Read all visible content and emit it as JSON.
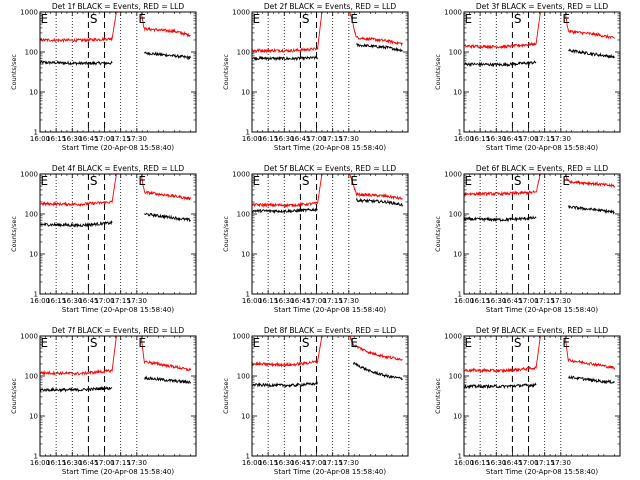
{
  "colors": {
    "events": "#000000",
    "lld": "#ff0000",
    "background": "#ffffff"
  },
  "chart_data": [
    {
      "type": "line",
      "title": "Det 1f BLACK = Events, RED = LLD",
      "xlabel": "Start Time (20-Apr-08 15:58:40)",
      "ylabel": "Counts/sec",
      "ylim": [
        1,
        1000
      ],
      "yscale": "log",
      "x_ticks": [
        "16:00",
        "16:15",
        "16:30",
        "16:45",
        "17:00",
        "17:15",
        "17:30"
      ],
      "y_ticks": [
        "1",
        "10",
        "100",
        "1000"
      ],
      "markers": [
        "S",
        "E"
      ],
      "series": [
        {
          "name": "Events",
          "color": "#000000",
          "segments": [
            [
              [
                0,
                55
              ],
              [
                37,
                52
              ],
              [
                67,
                53
              ]
            ],
            [
              [
                97,
                95
              ],
              [
                125,
                80
              ],
              [
                140,
                72
              ]
            ]
          ]
        },
        {
          "name": "LLD",
          "color": "#ff0000",
          "segments": [
            [
              [
                0,
                200
              ],
              [
                37,
                195
              ],
              [
                67,
                215
              ],
              [
                71,
                1000
              ]
            ],
            [
              [
                94,
                1000
              ],
              [
                97,
                380
              ],
              [
                125,
                330
              ],
              [
                140,
                260
              ]
            ]
          ]
        }
      ]
    },
    {
      "type": "line",
      "title": "Det 2f BLACK = Events, RED = LLD",
      "xlabel": "Start Time (20-Apr-08 15:58:40)",
      "ylabel": "Counts/sec",
      "ylim": [
        1,
        1000
      ],
      "yscale": "log",
      "x_ticks": [
        "16:00",
        "16:15",
        "16:30",
        "16:45",
        "17:00",
        "17:15",
        "17:30"
      ],
      "y_ticks": [
        "1",
        "10",
        "100",
        "1000"
      ],
      "markers": [
        "S",
        "E"
      ],
      "series": [
        {
          "name": "Events",
          "color": "#000000",
          "segments": [
            [
              [
                0,
                70
              ],
              [
                37,
                68
              ],
              [
                61,
                72
              ]
            ],
            [
              [
                97,
                150
              ],
              [
                125,
                130
              ],
              [
                140,
                110
              ]
            ]
          ]
        },
        {
          "name": "LLD",
          "color": "#ff0000",
          "segments": [
            [
              [
                0,
                110
              ],
              [
                37,
                108
              ],
              [
                61,
                120
              ],
              [
                65,
                1000
              ]
            ],
            [
              [
                91,
                1000
              ],
              [
                97,
                230
              ],
              [
                125,
                190
              ],
              [
                140,
                160
              ]
            ]
          ]
        }
      ]
    },
    {
      "type": "line",
      "title": "Det 3f BLACK = Events, RED = LLD",
      "xlabel": "Start Time (20-Apr-08 15:58:40)",
      "ylabel": "Counts/sec",
      "ylim": [
        1,
        1000
      ],
      "yscale": "log",
      "x_ticks": [
        "16:00",
        "16:15",
        "16:30",
        "16:45",
        "17:00",
        "17:15",
        "17:30"
      ],
      "y_ticks": [
        "1",
        "10",
        "100",
        "1000"
      ],
      "markers": [
        "S",
        "E"
      ],
      "series": [
        {
          "name": "Events",
          "color": "#000000",
          "segments": [
            [
              [
                0,
                50
              ],
              [
                37,
                48
              ],
              [
                67,
                55
              ]
            ],
            [
              [
                97,
                110
              ],
              [
                125,
                85
              ],
              [
                140,
                75
              ]
            ]
          ]
        },
        {
          "name": "LLD",
          "color": "#ff0000",
          "segments": [
            [
              [
                0,
                140
              ],
              [
                37,
                135
              ],
              [
                67,
                160
              ],
              [
                71,
                1000
              ]
            ],
            [
              [
                94,
                1000
              ],
              [
                97,
                330
              ],
              [
                125,
                270
              ],
              [
                140,
                220
              ]
            ]
          ]
        }
      ]
    },
    {
      "type": "line",
      "title": "Det 4f BLACK = Events, RED = LLD",
      "xlabel": "Start Time (20-Apr-08 15:58:40)",
      "ylabel": "Counts/sec",
      "ylim": [
        1,
        1000
      ],
      "yscale": "log",
      "x_ticks": [
        "16:00",
        "16:15",
        "16:30",
        "16:45",
        "17:00",
        "17:15",
        "17:30"
      ],
      "y_ticks": [
        "1",
        "10",
        "100",
        "1000"
      ],
      "markers": [
        "S",
        "E"
      ],
      "series": [
        {
          "name": "Events",
          "color": "#000000",
          "segments": [
            [
              [
                0,
                55
              ],
              [
                37,
                52
              ],
              [
                67,
                60
              ]
            ],
            [
              [
                97,
                100
              ],
              [
                125,
                80
              ],
              [
                140,
                70
              ]
            ]
          ]
        },
        {
          "name": "LLD",
          "color": "#ff0000",
          "segments": [
            [
              [
                0,
                180
              ],
              [
                37,
                175
              ],
              [
                67,
                200
              ],
              [
                71,
                1000
              ]
            ],
            [
              [
                94,
                1000
              ],
              [
                97,
                350
              ],
              [
                125,
                280
              ],
              [
                140,
                240
              ]
            ]
          ]
        }
      ]
    },
    {
      "type": "line",
      "title": "Det 5f BLACK = Events, RED = LLD",
      "xlabel": "Start Time (20-Apr-08 15:58:40)",
      "ylabel": "Counts/sec",
      "ylim": [
        1,
        1000
      ],
      "yscale": "log",
      "x_ticks": [
        "16:00",
        "16:15",
        "16:30",
        "16:45",
        "17:00",
        "17:15",
        "17:30"
      ],
      "y_ticks": [
        "1",
        "10",
        "100",
        "1000"
      ],
      "markers": [
        "S",
        "E"
      ],
      "series": [
        {
          "name": "Events",
          "color": "#000000",
          "segments": [
            [
              [
                0,
                120
              ],
              [
                37,
                118
              ],
              [
                61,
                130
              ]
            ],
            [
              [
                97,
                220
              ],
              [
                125,
                200
              ],
              [
                140,
                170
              ]
            ]
          ]
        },
        {
          "name": "LLD",
          "color": "#ff0000",
          "segments": [
            [
              [
                0,
                170
              ],
              [
                37,
                165
              ],
              [
                61,
                185
              ],
              [
                65,
                1000
              ]
            ],
            [
              [
                91,
                1000
              ],
              [
                97,
                310
              ],
              [
                125,
                280
              ],
              [
                140,
                240
              ]
            ]
          ]
        }
      ]
    },
    {
      "type": "line",
      "title": "Det 6f BLACK = Events, RED = LLD",
      "xlabel": "Start Time (20-Apr-08 15:58:40)",
      "ylabel": "Counts/sec",
      "ylim": [
        1,
        1000
      ],
      "yscale": "log",
      "x_ticks": [
        "16:00",
        "16:15",
        "16:30",
        "16:45",
        "17:00",
        "17:15",
        "17:30"
      ],
      "y_ticks": [
        "1",
        "10",
        "100",
        "1000"
      ],
      "markers": [
        "S",
        "E"
      ],
      "series": [
        {
          "name": "Events",
          "color": "#000000",
          "segments": [
            [
              [
                0,
                75
              ],
              [
                37,
                72
              ],
              [
                67,
                80
              ]
            ],
            [
              [
                97,
                150
              ],
              [
                125,
                125
              ],
              [
                140,
                110
              ]
            ]
          ]
        },
        {
          "name": "LLD",
          "color": "#ff0000",
          "segments": [
            [
              [
                0,
                320
              ],
              [
                37,
                320
              ],
              [
                67,
                350
              ],
              [
                71,
                1000
              ]
            ],
            [
              [
                94,
                1000
              ],
              [
                97,
                650
              ],
              [
                125,
                560
              ],
              [
                140,
                500
              ]
            ]
          ]
        }
      ]
    },
    {
      "type": "line",
      "title": "Det 7f BLACK = Events, RED = LLD",
      "xlabel": "Start Time (20-Apr-08 15:58:40)",
      "ylabel": "Counts/sec",
      "ylim": [
        1,
        1000
      ],
      "yscale": "log",
      "x_ticks": [
        "16:00",
        "16:15",
        "16:30",
        "16:45",
        "17:00",
        "17:15",
        "17:30"
      ],
      "y_ticks": [
        "1",
        "10",
        "100",
        "1000"
      ],
      "markers": [
        "S",
        "E"
      ],
      "series": [
        {
          "name": "Events",
          "color": "#000000",
          "segments": [
            [
              [
                0,
                45
              ],
              [
                37,
                45
              ],
              [
                67,
                50
              ]
            ],
            [
              [
                97,
                90
              ],
              [
                125,
                75
              ],
              [
                140,
                70
              ]
            ]
          ]
        },
        {
          "name": "LLD",
          "color": "#ff0000",
          "segments": [
            [
              [
                0,
                120
              ],
              [
                37,
                115
              ],
              [
                67,
                135
              ],
              [
                71,
                1000
              ]
            ],
            [
              [
                94,
                1000
              ],
              [
                97,
                230
              ],
              [
                125,
                170
              ],
              [
                140,
                140
              ]
            ]
          ]
        }
      ]
    },
    {
      "type": "line",
      "title": "Det 8f BLACK = Events, RED = LLD",
      "xlabel": "Start Time (20-Apr-08 15:58:40)",
      "ylabel": "Counts/sec",
      "ylim": [
        1,
        1000
      ],
      "yscale": "log",
      "x_ticks": [
        "16:00",
        "16:15",
        "16:30",
        "16:45",
        "17:00",
        "17:15",
        "17:30"
      ],
      "y_ticks": [
        "1",
        "10",
        "100",
        "1000"
      ],
      "markers": [
        "S",
        "E"
      ],
      "series": [
        {
          "name": "Events",
          "color": "#000000",
          "segments": [
            [
              [
                0,
                60
              ],
              [
                37,
                58
              ],
              [
                61,
                65
              ]
            ],
            [
              [
                94,
                210
              ],
              [
                110,
                130
              ],
              [
                125,
                100
              ],
              [
                140,
                85
              ]
            ]
          ]
        },
        {
          "name": "LLD",
          "color": "#ff0000",
          "segments": [
            [
              [
                0,
                200
              ],
              [
                37,
                190
              ],
              [
                61,
                230
              ],
              [
                65,
                1000
              ]
            ],
            [
              [
                91,
                1000
              ],
              [
                94,
                600
              ],
              [
                110,
                380
              ],
              [
                125,
                300
              ],
              [
                140,
                260
              ]
            ]
          ]
        }
      ]
    },
    {
      "type": "line",
      "title": "Det 9f BLACK = Events, RED = LLD",
      "xlabel": "Start Time (20-Apr-08 15:58:40)",
      "ylabel": "Counts/sec",
      "ylim": [
        1,
        1000
      ],
      "yscale": "log",
      "x_ticks": [
        "16:00",
        "16:15",
        "16:30",
        "16:45",
        "17:00",
        "17:15",
        "17:30"
      ],
      "y_ticks": [
        "1",
        "10",
        "100",
        "1000"
      ],
      "markers": [
        "S",
        "E"
      ],
      "series": [
        {
          "name": "Events",
          "color": "#000000",
          "segments": [
            [
              [
                0,
                55
              ],
              [
                37,
                55
              ],
              [
                67,
                60
              ]
            ],
            [
              [
                97,
                95
              ],
              [
                125,
                75
              ],
              [
                140,
                70
              ]
            ]
          ]
        },
        {
          "name": "LLD",
          "color": "#ff0000",
          "segments": [
            [
              [
                0,
                140
              ],
              [
                37,
                135
              ],
              [
                67,
                160
              ],
              [
                71,
                1000
              ]
            ],
            [
              [
                94,
                1000
              ],
              [
                97,
                250
              ],
              [
                125,
                190
              ],
              [
                140,
                160
              ]
            ]
          ]
        }
      ]
    }
  ]
}
